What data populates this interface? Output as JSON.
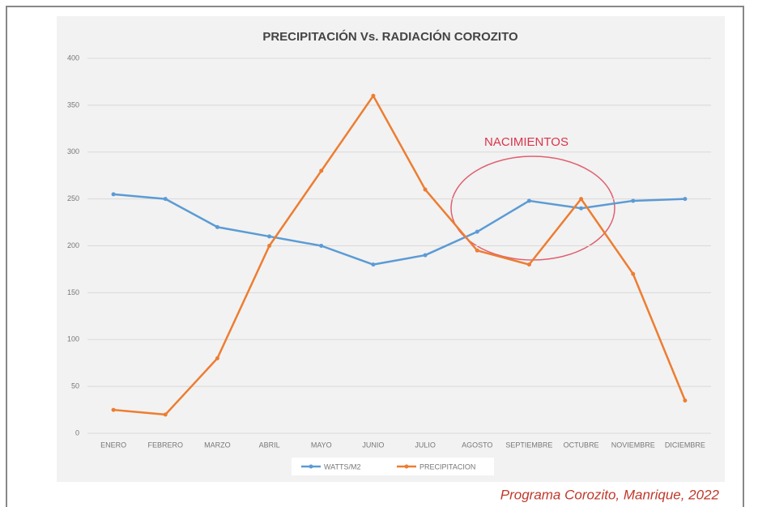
{
  "chart_data": {
    "type": "line",
    "title": "PRECIPITACIÓN  Vs. RADIACIÓN COROZITO",
    "categories": [
      "ENERO",
      "FEBRERO",
      "MARZO",
      "ABRIL",
      "MAYO",
      "JUNIO",
      "JULIO",
      "AGOSTO",
      "SEPTIEMBRE",
      "OCTUBRE",
      "NOVIEMBRE",
      "DICIEMBRE"
    ],
    "series": [
      {
        "name": "WATTS/M2",
        "color": "#5b9bd5",
        "values": [
          255,
          250,
          220,
          210,
          200,
          180,
          190,
          215,
          248,
          240,
          248,
          250
        ]
      },
      {
        "name": "PRECIPITACION",
        "color": "#ed7d31",
        "values": [
          25,
          20,
          80,
          200,
          280,
          360,
          260,
          195,
          180,
          250,
          170,
          35
        ]
      }
    ],
    "ylim": [
      0,
      400
    ],
    "yticks": [
      0,
      50,
      100,
      150,
      200,
      250,
      300,
      350,
      400
    ],
    "grid": true,
    "legend": "bottom",
    "annotation": "NACIMIENTOS",
    "caption": "Programa Corozito, Manrique, 2022"
  }
}
